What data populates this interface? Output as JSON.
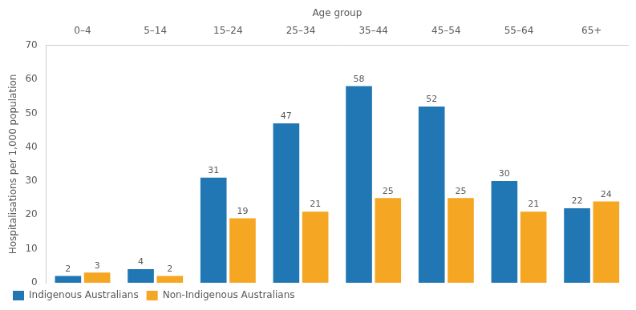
{
  "chart_data": {
    "type": "bar",
    "title": "Age group",
    "categories": [
      "0–4",
      "5–14",
      "15–24",
      "25–34",
      "35–44",
      "45–54",
      "55–64",
      "65+"
    ],
    "series": [
      {
        "name": "Indigenous Australians",
        "color": "#2077b4",
        "values": [
          2,
          4,
          31,
          47,
          58,
          52,
          30,
          22
        ]
      },
      {
        "name": "Non-Indigenous Australians",
        "color": "#f5a623",
        "values": [
          3,
          2,
          19,
          21,
          25,
          25,
          21,
          24
        ]
      }
    ],
    "ylabel": "Hospitalisations per 1,000 population",
    "ylim": [
      0,
      70
    ],
    "yticks": [
      0,
      10,
      20,
      30,
      40,
      50,
      60,
      70
    ],
    "grid": false,
    "legend": "bottom",
    "data_labels": true
  }
}
